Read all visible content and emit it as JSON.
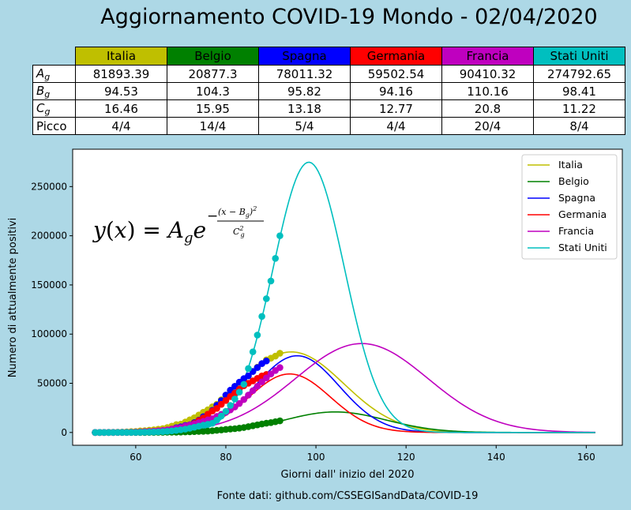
{
  "title": "Aggiornamento COVID-19 Mondo - 02/04/2020",
  "source": "Fonte dati: github.com/CSSEGISandData/COVID-19",
  "table": {
    "columns": [
      "Italia",
      "Belgio",
      "Spagna",
      "Germania",
      "Francia",
      "Stati Uniti"
    ],
    "column_colors": [
      "#bfbf00",
      "#008000",
      "#0000ff",
      "#ff0000",
      "#bf00bf",
      "#00bfbf"
    ],
    "rows": [
      {
        "label_base": "A",
        "label_sub": "g",
        "values": [
          "81893.39",
          "20877.3",
          "78011.32",
          "59502.54",
          "90410.32",
          "274792.65"
        ]
      },
      {
        "label_base": "B",
        "label_sub": "g",
        "values": [
          "94.53",
          "104.3",
          "95.82",
          "94.16",
          "110.16",
          "98.41"
        ]
      },
      {
        "label_base": "C",
        "label_sub": "g",
        "values": [
          "16.46",
          "15.95",
          "13.18",
          "12.77",
          "20.8",
          "11.22"
        ]
      },
      {
        "label_base": "Picco",
        "label_sub": "",
        "values": [
          "4/4",
          "14/4",
          "5/4",
          "4/4",
          "20/4",
          "8/4"
        ]
      }
    ]
  },
  "chart_data": {
    "type": "line",
    "xlabel": "Giorni dall' inizio del 2020",
    "ylabel": "Numero di attualmente positivi",
    "xlim": [
      46,
      168
    ],
    "ylim": [
      -13000,
      288000
    ],
    "xticks": [
      60,
      80,
      100,
      120,
      140,
      160
    ],
    "yticks": [
      0,
      50000,
      100000,
      150000,
      200000,
      250000
    ],
    "formula": "y(x) = A_g e^{-(x-B_g)^2 / C_g^2}",
    "legend_position": "top-right",
    "fit_range": [
      51,
      162
    ],
    "series": [
      {
        "name": "Italia",
        "color": "#bfbf00",
        "A": 81893.39,
        "B": 94.53,
        "C": 16.46,
        "observed": [
          [
            51,
            3
          ],
          [
            52,
            20
          ],
          [
            53,
            62
          ],
          [
            54,
            155
          ],
          [
            55,
            229
          ],
          [
            56,
            322
          ],
          [
            57,
            453
          ],
          [
            58,
            655
          ],
          [
            59,
            888
          ],
          [
            60,
            1049
          ],
          [
            61,
            1577
          ],
          [
            62,
            1835
          ],
          [
            63,
            2263
          ],
          [
            64,
            2706
          ],
          [
            65,
            3296
          ],
          [
            66,
            3916
          ],
          [
            67,
            5061
          ],
          [
            68,
            6387
          ],
          [
            69,
            7985
          ],
          [
            70,
            8514
          ],
          [
            71,
            10590
          ],
          [
            72,
            12839
          ],
          [
            73,
            14955
          ],
          [
            74,
            17750
          ],
          [
            75,
            20603
          ],
          [
            76,
            23073
          ],
          [
            77,
            26062
          ],
          [
            78,
            28710
          ],
          [
            79,
            33190
          ],
          [
            80,
            37860
          ],
          [
            81,
            42681
          ],
          [
            82,
            46638
          ],
          [
            83,
            50418
          ],
          [
            84,
            54030
          ],
          [
            85,
            57521
          ],
          [
            86,
            62013
          ],
          [
            87,
            66414
          ],
          [
            88,
            70065
          ],
          [
            89,
            73880
          ],
          [
            90,
            75528
          ],
          [
            91,
            77635
          ],
          [
            92,
            80572
          ]
        ]
      },
      {
        "name": "Belgio",
        "color": "#008000",
        "A": 20877.3,
        "B": 104.3,
        "C": 15.95,
        "observed": [
          [
            51,
            0
          ],
          [
            52,
            0
          ],
          [
            53,
            0
          ],
          [
            54,
            0
          ],
          [
            55,
            1
          ],
          [
            56,
            1
          ],
          [
            57,
            1
          ],
          [
            58,
            1
          ],
          [
            59,
            1
          ],
          [
            60,
            7
          ],
          [
            61,
            12
          ],
          [
            62,
            22
          ],
          [
            63,
            49
          ],
          [
            64,
            108
          ],
          [
            65,
            168
          ],
          [
            66,
            198
          ],
          [
            67,
            237
          ],
          [
            68,
            266
          ],
          [
            69,
            309
          ],
          [
            70,
            393
          ],
          [
            71,
            558
          ],
          [
            72,
            686
          ],
          [
            73,
            878
          ],
          [
            74,
            1076
          ],
          [
            75,
            1208
          ],
          [
            76,
            1402
          ],
          [
            77,
            1752
          ],
          [
            78,
            2186
          ],
          [
            79,
            2577
          ],
          [
            80,
            3121
          ],
          [
            81,
            3496
          ],
          [
            82,
            3849
          ],
          [
            83,
            4367
          ],
          [
            84,
            5046
          ],
          [
            85,
            5900
          ],
          [
            86,
            6800
          ],
          [
            87,
            7700
          ],
          [
            88,
            8600
          ],
          [
            89,
            9400
          ],
          [
            90,
            10000
          ],
          [
            91,
            10900
          ],
          [
            92,
            11800
          ]
        ]
      },
      {
        "name": "Spagna",
        "color": "#0000ff",
        "A": 78011.32,
        "B": 95.82,
        "C": 13.18,
        "observed": [
          [
            51,
            1
          ],
          [
            52,
            2
          ],
          [
            53,
            4
          ],
          [
            54,
            10
          ],
          [
            55,
            30
          ],
          [
            56,
            40
          ],
          [
            57,
            80
          ],
          [
            58,
            110
          ],
          [
            59,
            150
          ],
          [
            60,
            190
          ],
          [
            61,
            250
          ],
          [
            62,
            330
          ],
          [
            63,
            480
          ],
          [
            64,
            640
          ],
          [
            65,
            1000
          ],
          [
            66,
            1600
          ],
          [
            67,
            2100
          ],
          [
            68,
            2900
          ],
          [
            69,
            4800
          ],
          [
            70,
            5700
          ],
          [
            71,
            7100
          ],
          [
            72,
            7800
          ],
          [
            73,
            10000
          ],
          [
            74,
            12500
          ],
          [
            75,
            16100
          ],
          [
            76,
            18500
          ],
          [
            77,
            22500
          ],
          [
            78,
            27700
          ],
          [
            79,
            32400
          ],
          [
            80,
            38000
          ],
          [
            81,
            43000
          ],
          [
            82,
            47000
          ],
          [
            83,
            51200
          ],
          [
            84,
            54800
          ],
          [
            85,
            57600
          ],
          [
            86,
            62000
          ],
          [
            87,
            66000
          ],
          [
            88,
            70000
          ],
          [
            89,
            72700
          ]
        ]
      },
      {
        "name": "Germania",
        "color": "#ff0000",
        "A": 59502.54,
        "B": 94.16,
        "C": 12.77,
        "observed": [
          [
            51,
            16
          ],
          [
            52,
            16
          ],
          [
            53,
            16
          ],
          [
            54,
            16
          ],
          [
            55,
            30
          ],
          [
            56,
            40
          ],
          [
            57,
            130
          ],
          [
            58,
            170
          ],
          [
            59,
            250
          ],
          [
            60,
            390
          ],
          [
            61,
            530
          ],
          [
            62,
            660
          ],
          [
            63,
            780
          ],
          [
            64,
            1030
          ],
          [
            65,
            1150
          ],
          [
            66,
            1500
          ],
          [
            67,
            1860
          ],
          [
            68,
            2700
          ],
          [
            69,
            3600
          ],
          [
            70,
            4500
          ],
          [
            71,
            5800
          ],
          [
            72,
            7200
          ],
          [
            73,
            9200
          ],
          [
            74,
            12100
          ],
          [
            75,
            14800
          ],
          [
            76,
            18600
          ],
          [
            77,
            21800
          ],
          [
            78,
            24500
          ],
          [
            79,
            28600
          ],
          [
            80,
            32500
          ],
          [
            81,
            36500
          ],
          [
            82,
            40000
          ],
          [
            83,
            44000
          ],
          [
            84,
            47500
          ],
          [
            85,
            50000
          ],
          [
            86,
            52500
          ],
          [
            87,
            55000
          ],
          [
            88,
            57500
          ],
          [
            89,
            59000
          ]
        ]
      },
      {
        "name": "Francia",
        "color": "#bf00bf",
        "A": 90410.32,
        "B": 110.16,
        "C": 20.8,
        "observed": [
          [
            51,
            7
          ],
          [
            52,
            8
          ],
          [
            53,
            28
          ],
          [
            54,
            66
          ],
          [
            55,
            90
          ],
          [
            56,
            124
          ],
          [
            57,
            160
          ],
          [
            58,
            200
          ],
          [
            59,
            300
          ],
          [
            60,
            400
          ],
          [
            61,
            600
          ],
          [
            62,
            900
          ],
          [
            63,
            1100
          ],
          [
            64,
            1350
          ],
          [
            65,
            1700
          ],
          [
            66,
            2100
          ],
          [
            67,
            2600
          ],
          [
            68,
            3500
          ],
          [
            69,
            4300
          ],
          [
            70,
            5000
          ],
          [
            71,
            6600
          ],
          [
            72,
            7600
          ],
          [
            73,
            8500
          ],
          [
            74,
            10000
          ],
          [
            75,
            11300
          ],
          [
            76,
            12800
          ],
          [
            77,
            14000
          ],
          [
            78,
            16400
          ],
          [
            79,
            18500
          ],
          [
            80,
            20400
          ],
          [
            81,
            23000
          ],
          [
            82,
            26000
          ],
          [
            83,
            29500
          ],
          [
            84,
            33500
          ],
          [
            85,
            38000
          ],
          [
            86,
            42500
          ],
          [
            87,
            47000
          ],
          [
            88,
            51500
          ],
          [
            89,
            55500
          ],
          [
            90,
            59500
          ],
          [
            91,
            63000
          ],
          [
            92,
            66000
          ]
        ]
      },
      {
        "name": "Stati Uniti",
        "color": "#00bfbf",
        "A": 274792.65,
        "B": 98.41,
        "C": 11.22,
        "observed": [
          [
            51,
            10
          ],
          [
            52,
            12
          ],
          [
            53,
            15
          ],
          [
            54,
            20
          ],
          [
            55,
            30
          ],
          [
            56,
            45
          ],
          [
            57,
            60
          ],
          [
            58,
            80
          ],
          [
            59,
            100
          ],
          [
            60,
            140
          ],
          [
            61,
            200
          ],
          [
            62,
            270
          ],
          [
            63,
            360
          ],
          [
            64,
            480
          ],
          [
            65,
            650
          ],
          [
            66,
            880
          ],
          [
            67,
            1200
          ],
          [
            68,
            1600
          ],
          [
            69,
            2100
          ],
          [
            70,
            2700
          ],
          [
            71,
            3400
          ],
          [
            72,
            4300
          ],
          [
            73,
            5300
          ],
          [
            74,
            6400
          ],
          [
            75,
            7400
          ],
          [
            76,
            8300
          ],
          [
            77,
            9300
          ],
          [
            78,
            12500
          ],
          [
            79,
            16700
          ],
          [
            80,
            21500
          ],
          [
            81,
            27500
          ],
          [
            82,
            34000
          ],
          [
            83,
            41000
          ],
          [
            84,
            49000
          ],
          [
            85,
            65000
          ],
          [
            86,
            82000
          ],
          [
            87,
            99000
          ],
          [
            88,
            118000
          ],
          [
            89,
            136000
          ],
          [
            90,
            154000
          ],
          [
            91,
            177000
          ],
          [
            92,
            200000
          ]
        ]
      }
    ]
  }
}
